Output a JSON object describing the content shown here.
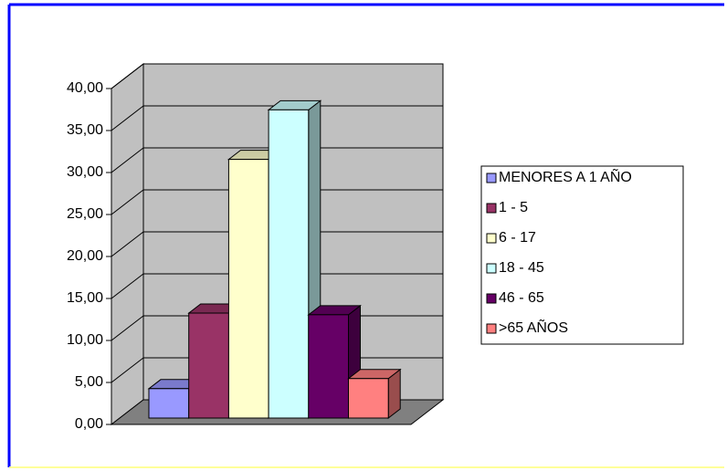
{
  "chart_data": {
    "type": "bar3d",
    "series": [
      {
        "name": "MENORES A 1 AÑO",
        "color": "#9999ff",
        "values": [
          3.5
        ]
      },
      {
        "name": "1 - 5",
        "color": "#993366",
        "values": [
          12.5
        ]
      },
      {
        "name": "6 - 17",
        "color": "#ffffcc",
        "values": [
          30.8
        ]
      },
      {
        "name": "18 - 45",
        "color": "#ccffff",
        "values": [
          36.7
        ]
      },
      {
        "name": "46 - 65",
        "color": "#660066",
        "values": [
          12.3
        ]
      },
      {
        "name": ">65 AÑOS",
        "color": "#ff8080",
        "values": [
          4.7
        ]
      }
    ],
    "ylim": [
      0,
      40
    ],
    "yticks": [
      {
        "value": 0,
        "label": "0,00"
      },
      {
        "value": 5,
        "label": "5,00"
      },
      {
        "value": 10,
        "label": "10,00"
      },
      {
        "value": 15,
        "label": "15,00"
      },
      {
        "value": 20,
        "label": "20,00"
      },
      {
        "value": 25,
        "label": "25,00"
      },
      {
        "value": 30,
        "label": "30,00"
      },
      {
        "value": 35,
        "label": "35,00"
      },
      {
        "value": 40,
        "label": "40,00"
      }
    ],
    "grid": true,
    "legend": "right"
  }
}
